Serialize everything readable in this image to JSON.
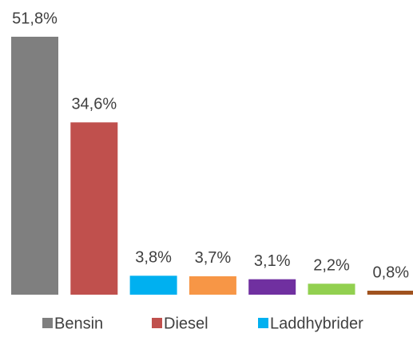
{
  "chart_data": {
    "type": "bar",
    "series": [
      {
        "name": "Bensin",
        "color": "#7f7f7f",
        "values": [
          51.8
        ],
        "value_labels": [
          "51,8%"
        ]
      },
      {
        "name": "Diesel",
        "color": "#c0504d",
        "values": [
          34.6
        ],
        "value_labels": [
          "34,6%"
        ]
      },
      {
        "name": "Laddhybrider",
        "color": "#00b0f0",
        "values": [
          3.8
        ],
        "value_labels": [
          "3,8%"
        ]
      },
      {
        "color": "#f79646",
        "values": [
          3.7
        ],
        "value_labels": [
          "3,7%"
        ]
      },
      {
        "color": "#7030a0",
        "values": [
          3.1
        ],
        "value_labels": [
          "3,1%"
        ]
      },
      {
        "color": "#92d050",
        "values": [
          2.2
        ],
        "value_labels": [
          "2,2%"
        ]
      },
      {
        "color": "#a0521e",
        "values": [
          0.8
        ],
        "value_labels": [
          "0,8%"
        ]
      }
    ]
  }
}
